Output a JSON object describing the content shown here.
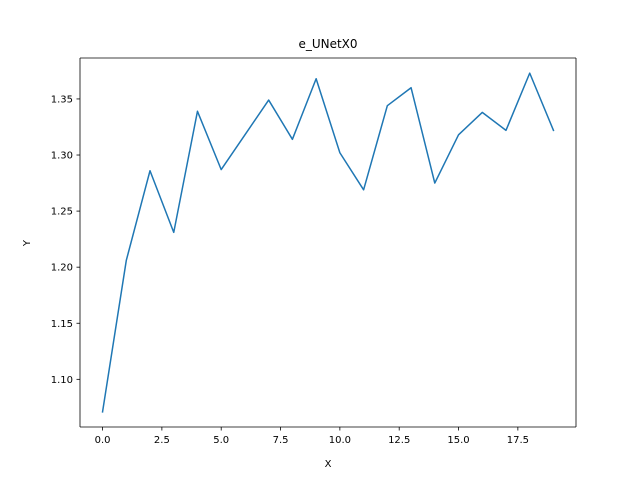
{
  "chart_data": {
    "type": "line",
    "title": "e_UNetX0",
    "xlabel": "X",
    "ylabel": "Y",
    "xlim": [
      -0.95,
      19.95
    ],
    "ylim": [
      1.0575,
      1.3865
    ],
    "xticks": [
      0.0,
      2.5,
      5.0,
      7.5,
      10.0,
      12.5,
      15.0,
      17.5
    ],
    "xtick_labels": [
      "0.0",
      "2.5",
      "5.0",
      "7.5",
      "10.0",
      "12.5",
      "15.0",
      "17.5"
    ],
    "yticks": [
      1.1,
      1.15,
      1.2,
      1.25,
      1.3,
      1.35
    ],
    "ytick_labels": [
      "1.10",
      "1.15",
      "1.20",
      "1.25",
      "1.30",
      "1.35"
    ],
    "grid": false,
    "series": [
      {
        "color": "#1f77b4",
        "x": [
          0,
          1,
          2,
          3,
          4,
          5,
          6,
          7,
          8,
          9,
          10,
          11,
          12,
          13,
          14,
          15,
          16,
          17,
          18,
          19
        ],
        "y": [
          1.071,
          1.206,
          1.286,
          1.231,
          1.339,
          1.287,
          1.318,
          1.349,
          1.314,
          1.368,
          1.302,
          1.269,
          1.344,
          1.36,
          1.275,
          1.318,
          1.338,
          1.322,
          1.373,
          1.322
        ]
      }
    ]
  }
}
